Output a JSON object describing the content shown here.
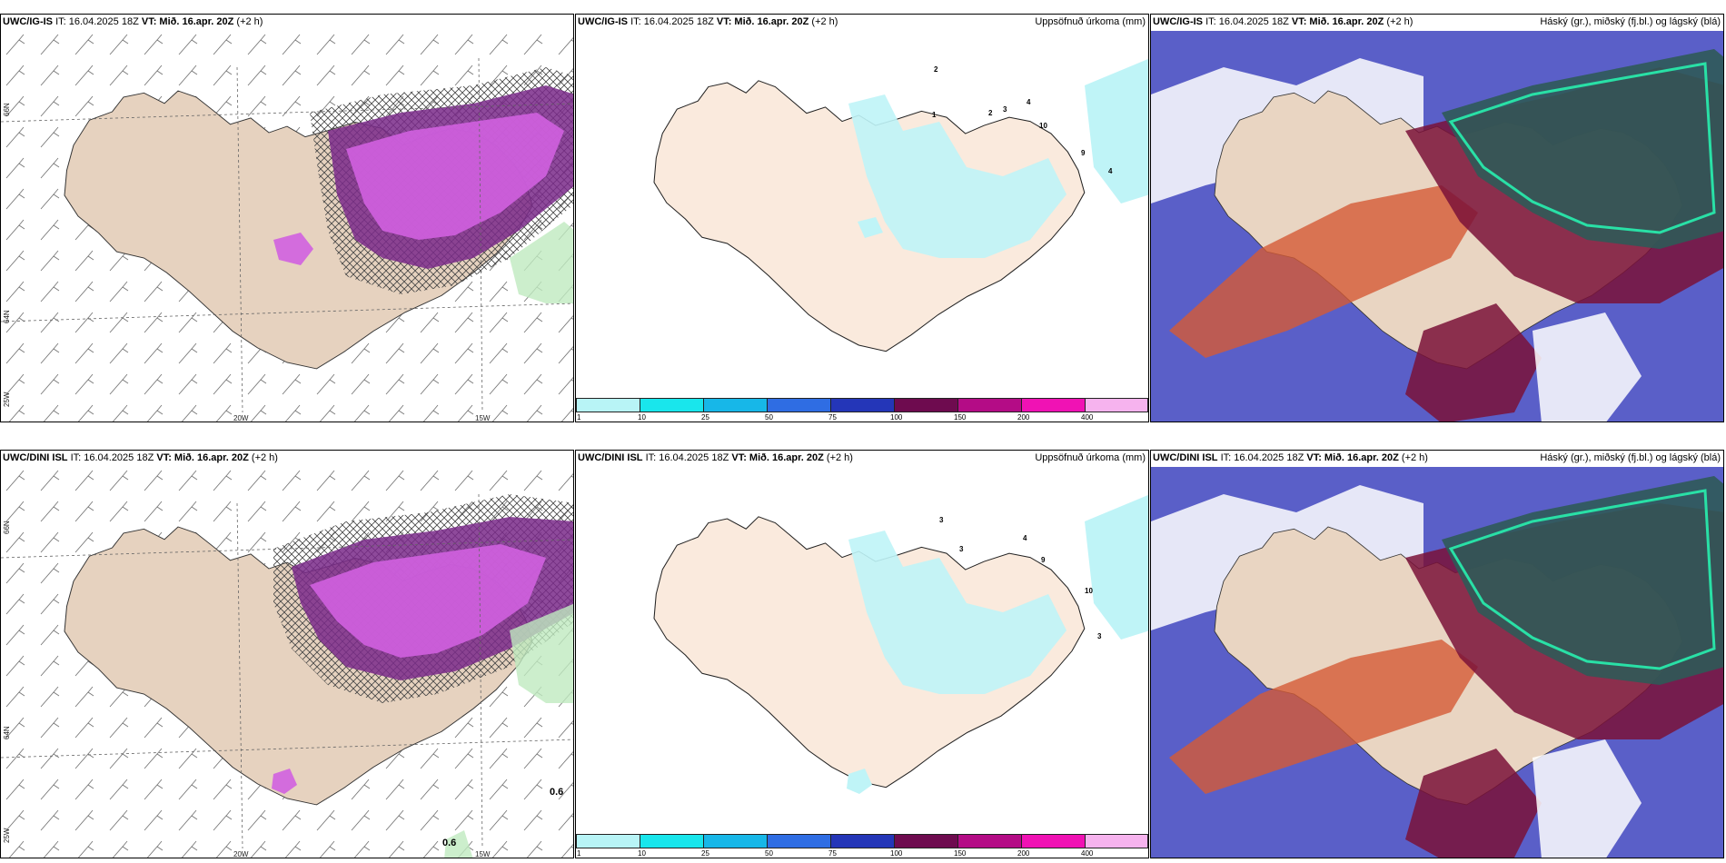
{
  "rows": [
    {
      "model": "UWC/IG-IS",
      "init_time": "IT: 16.04.2025 18Z",
      "valid_label": "VT:",
      "valid_time": "Mið. 16.apr. 20Z",
      "lead": "(+2 h)"
    },
    {
      "model": "UWC/DINI ISL",
      "init_time": "IT: 16.04.2025 18Z",
      "valid_label": "VT:",
      "valid_time": "Mið. 16.apr. 20Z",
      "lead": "(+2 h)"
    }
  ],
  "titles": {
    "precip": "Uppsöfnuð úrkoma (mm)",
    "cloud": "Háský (gr.), miðský (fj.bl.) og lágský (blá)"
  },
  "axes": {
    "lon_20w": "20W",
    "lon_15w": "15W",
    "lon_25w": "25W",
    "lat_66n": "66N",
    "lat_64n": "64N"
  },
  "colorbar": {
    "ticks": [
      "1",
      "10",
      "25",
      "50",
      "75",
      "100",
      "150",
      "200",
      "400"
    ],
    "colors": [
      "#b8f4f6",
      "#19e6ec",
      "#17b7e8",
      "#2f6de3",
      "#2436b8",
      "#6e0b4f",
      "#b40c86",
      "#f012b4",
      "#f6b3ee"
    ]
  },
  "bottom_wind_labels": [
    "0.6",
    "0.6"
  ],
  "top_precip_labels": [
    "2",
    "1",
    "2",
    "3",
    "4",
    "10",
    "9",
    "4"
  ],
  "bottom_precip_labels": [
    "3",
    "3",
    "4",
    "9",
    "10",
    "3"
  ]
}
